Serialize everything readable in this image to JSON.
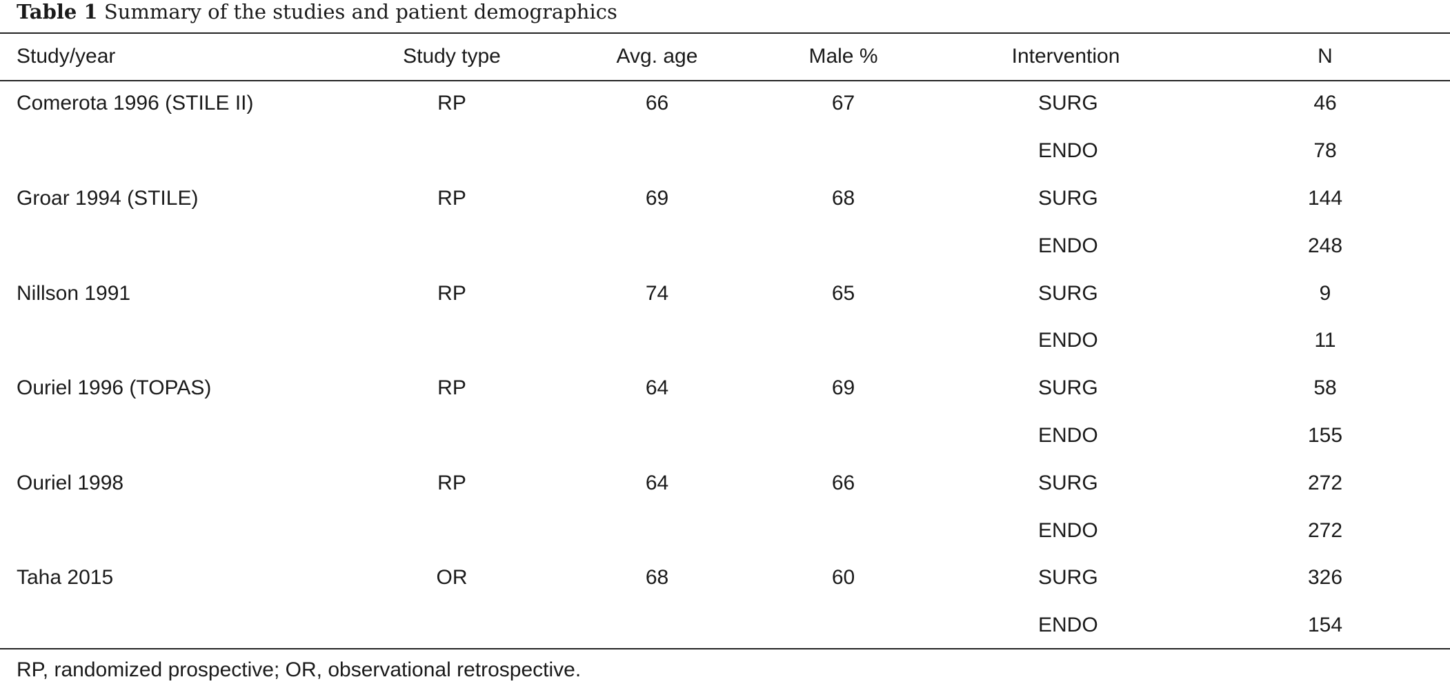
{
  "caption": {
    "label": "Table 1",
    "title": "Summary of the studies and patient demographics"
  },
  "table": {
    "headers": {
      "study": "Study/year",
      "type": "Study type",
      "age": "Avg. age",
      "male": "Male %",
      "intervention": "Intervention",
      "n": "N"
    },
    "rows": [
      {
        "study": "Comerota 1996 (STILE II)",
        "type": "RP",
        "age": "66",
        "male": "67",
        "intervention": "SURG",
        "n": "46"
      },
      {
        "study": "",
        "type": "",
        "age": "",
        "male": "",
        "intervention": "ENDO",
        "n": "78"
      },
      {
        "study": "Groar 1994 (STILE)",
        "type": "RP",
        "age": "69",
        "male": "68",
        "intervention": "SURG",
        "n": "144"
      },
      {
        "study": "",
        "type": "",
        "age": "",
        "male": "",
        "intervention": "ENDO",
        "n": "248"
      },
      {
        "study": "Nillson 1991",
        "type": "RP",
        "age": "74",
        "male": "65",
        "intervention": "SURG",
        "n": "9"
      },
      {
        "study": "",
        "type": "",
        "age": "",
        "male": "",
        "intervention": "ENDO",
        "n": "11"
      },
      {
        "study": "Ouriel 1996 (TOPAS)",
        "type": "RP",
        "age": "64",
        "male": "69",
        "intervention": "SURG",
        "n": "58"
      },
      {
        "study": "",
        "type": "",
        "age": "",
        "male": "",
        "intervention": "ENDO",
        "n": "155"
      },
      {
        "study": "Ouriel 1998",
        "type": "RP",
        "age": "64",
        "male": "66",
        "intervention": "SURG",
        "n": "272"
      },
      {
        "study": "",
        "type": "",
        "age": "",
        "male": "",
        "intervention": "ENDO",
        "n": "272"
      },
      {
        "study": "Taha 2015",
        "type": "OR",
        "age": "68",
        "male": "60",
        "intervention": "SURG",
        "n": "326"
      },
      {
        "study": "",
        "type": "",
        "age": "",
        "male": "",
        "intervention": "ENDO",
        "n": "154"
      }
    ]
  },
  "footnote": "RP, randomized prospective; OR, observational retrospective."
}
